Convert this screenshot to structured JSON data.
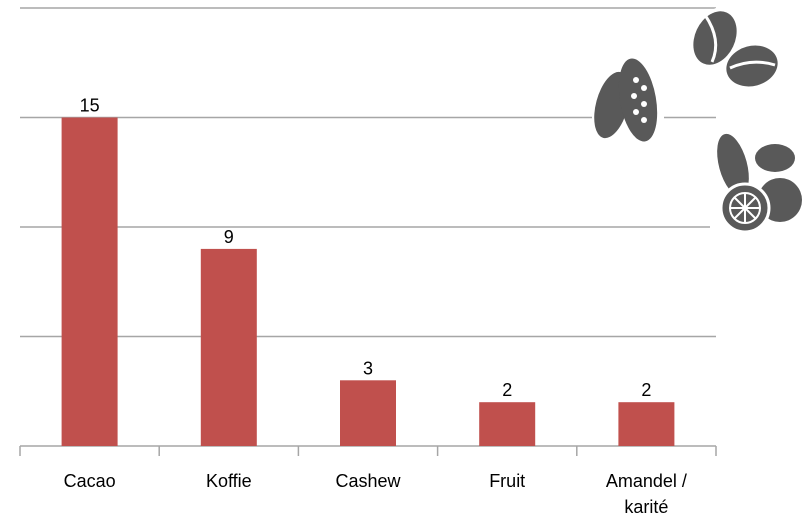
{
  "chart_data": {
    "type": "bar",
    "categories": [
      "Cacao",
      "Koffie",
      "Cashew",
      "Fruit",
      "Amandel / karité"
    ],
    "values": [
      15,
      9,
      3,
      2,
      2
    ],
    "color": "#c0504d",
    "ylim": [
      0,
      20
    ],
    "yticks": [
      0,
      5,
      10,
      15,
      20
    ],
    "grid": true
  }
}
